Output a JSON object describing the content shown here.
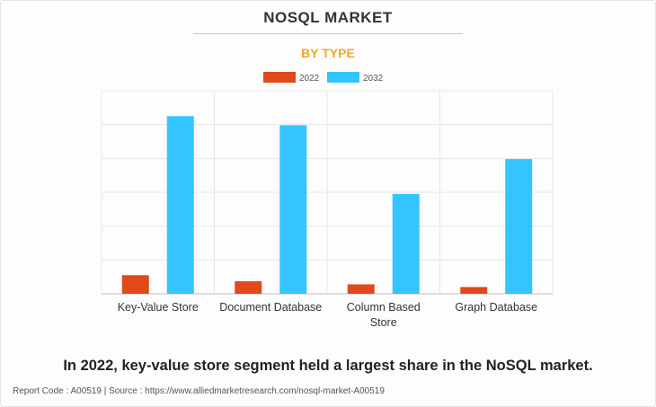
{
  "title": "NOSQL MARKET",
  "subtitle": "BY TYPE",
  "caption": "In 2022, key-value store segment held a largest share in the NoSQL market.",
  "footer": "Report Code : A00519  |  Source : https://www.alliedmarketresearch.com/nosql-market-A00519",
  "colors": {
    "accent": "#f5a623",
    "series_2022": "#e04a1a",
    "series_2032": "#33c5ff"
  },
  "chart_data": {
    "type": "bar",
    "categories": [
      "Key-Value Store",
      "Document Database",
      "Column Based Store",
      "Graph Database"
    ],
    "category_lines": [
      [
        "Key-Value Store"
      ],
      [
        "Document Database"
      ],
      [
        "Column Based",
        "Store"
      ],
      [
        "Graph Database"
      ]
    ],
    "series": [
      {
        "name": "2022",
        "color": "#e04a1a",
        "values": [
          0.55,
          0.37,
          0.28,
          0.2
        ]
      },
      {
        "name": "2032",
        "color": "#33c5ff",
        "values": [
          5.25,
          4.98,
          2.95,
          3.98
        ]
      }
    ],
    "ylim": [
      0,
      6
    ],
    "yticks": [
      0,
      1,
      2,
      3,
      4,
      5,
      6
    ],
    "y_tick_labels_shown": false,
    "grid": true,
    "legend": "top-center",
    "xlabel": "",
    "ylabel": ""
  }
}
